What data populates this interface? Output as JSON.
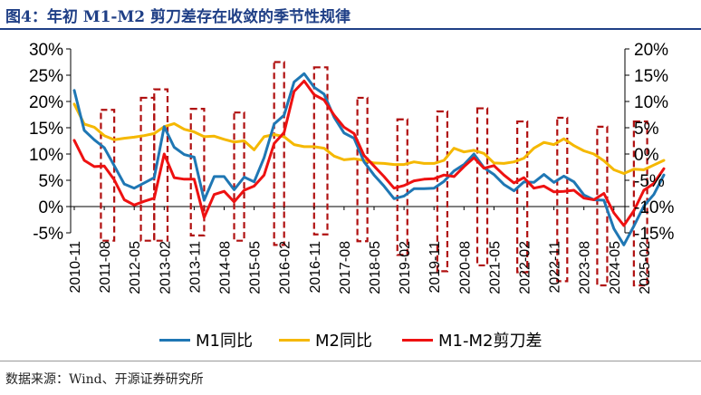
{
  "title": "图4：年初 M1-M2 剪刀差存在收敛的季节性规律",
  "source": "数据来源：Wind、开源证券研究所",
  "colors": {
    "m1": "#1f77b4",
    "m2": "#f5b800",
    "scissor": "#ee1111",
    "box": "#b01010",
    "title": "#1f3f86"
  },
  "chart_data": {
    "type": "line",
    "title": "图4：年初 M1-M2 剪刀差存在收敛的季节性规律",
    "left_axis": {
      "ticks": [
        "30%",
        "25%",
        "20%",
        "15%",
        "10%",
        "5%",
        "0%",
        "-5%"
      ],
      "range": [
        -5,
        30
      ]
    },
    "right_axis": {
      "ticks": [
        "20%",
        "15%",
        "10%",
        "5%",
        "0%",
        "-5%",
        "-10%",
        "-15%"
      ],
      "range": [
        -15,
        20
      ]
    },
    "x_tick_labels": [
      "2010-11",
      "2011-08",
      "2012-05",
      "2013-02",
      "2013-11",
      "2014-08",
      "2015-05",
      "2016-02",
      "2016-11",
      "2017-08",
      "2018-05",
      "2019-02",
      "2019-11",
      "2020-08",
      "2021-05",
      "2022-02",
      "2022-11",
      "2023-08",
      "2024-05",
      "2025-02"
    ],
    "legend": {
      "position": "bottom",
      "entries": [
        "M1同比",
        "M2同比",
        "M1-M2剪刀差"
      ]
    },
    "series": [
      {
        "name": "M1同比",
        "axis": "left",
        "x": [
          "2010-11",
          "2011-02",
          "2011-05",
          "2011-08",
          "2011-11",
          "2012-02",
          "2012-05",
          "2012-08",
          "2012-11",
          "2013-02",
          "2013-05",
          "2013-08",
          "2013-11",
          "2014-02",
          "2014-05",
          "2014-08",
          "2014-11",
          "2015-02",
          "2015-05",
          "2015-08",
          "2015-11",
          "2016-02",
          "2016-05",
          "2016-08",
          "2016-11",
          "2017-02",
          "2017-05",
          "2017-08",
          "2017-11",
          "2018-02",
          "2018-05",
          "2018-08",
          "2018-11",
          "2019-02",
          "2019-05",
          "2019-08",
          "2019-11",
          "2020-02",
          "2020-05",
          "2020-08",
          "2020-11",
          "2021-02",
          "2021-05",
          "2021-08",
          "2021-11",
          "2022-02",
          "2022-05",
          "2022-08",
          "2022-11",
          "2023-02",
          "2023-05",
          "2023-08",
          "2023-11",
          "2024-02",
          "2024-05",
          "2024-08",
          "2024-11",
          "2025-02",
          "2025-05",
          "2025-08"
        ],
        "values": [
          22.1,
          14.5,
          12.7,
          11.2,
          7.8,
          4.3,
          3.5,
          4.5,
          5.5,
          15.2,
          11.3,
          9.9,
          9.4,
          1.2,
          5.7,
          5.7,
          3.2,
          5.6,
          4.7,
          9.3,
          15.7,
          17.4,
          23.7,
          25.3,
          22.7,
          21.4,
          17.0,
          14.0,
          13.0,
          8.5,
          6.0,
          3.9,
          1.5,
          2.0,
          3.4,
          3.4,
          3.5,
          4.8,
          6.8,
          8.0,
          10.0,
          7.4,
          6.1,
          4.2,
          3.0,
          4.7,
          4.6,
          6.1,
          4.6,
          5.8,
          4.7,
          2.2,
          1.3,
          1.2,
          -4.2,
          -7.3,
          -3.7,
          0.1,
          2.3,
          6.0
        ]
      },
      {
        "name": "M2同比",
        "axis": "left",
        "x": [
          "2010-11",
          "2011-02",
          "2011-05",
          "2011-08",
          "2011-11",
          "2012-02",
          "2012-05",
          "2012-08",
          "2012-11",
          "2013-02",
          "2013-05",
          "2013-08",
          "2013-11",
          "2014-02",
          "2014-05",
          "2014-08",
          "2014-11",
          "2015-02",
          "2015-05",
          "2015-08",
          "2015-11",
          "2016-02",
          "2016-05",
          "2016-08",
          "2016-11",
          "2017-02",
          "2017-05",
          "2017-08",
          "2017-11",
          "2018-02",
          "2018-05",
          "2018-08",
          "2018-11",
          "2019-02",
          "2019-05",
          "2019-08",
          "2019-11",
          "2020-02",
          "2020-05",
          "2020-08",
          "2020-11",
          "2021-02",
          "2021-05",
          "2021-08",
          "2021-11",
          "2022-02",
          "2022-05",
          "2022-08",
          "2022-11",
          "2023-02",
          "2023-05",
          "2023-08",
          "2023-11",
          "2024-02",
          "2024-05",
          "2024-08",
          "2024-11",
          "2025-02",
          "2025-05",
          "2025-08"
        ],
        "values": [
          19.5,
          15.7,
          15.1,
          13.5,
          12.7,
          13.0,
          13.2,
          13.5,
          13.9,
          15.2,
          15.8,
          14.7,
          14.2,
          13.3,
          13.4,
          12.8,
          12.3,
          12.5,
          10.8,
          13.3,
          13.7,
          13.3,
          11.8,
          11.4,
          11.4,
          11.1,
          9.6,
          8.9,
          9.1,
          8.8,
          8.3,
          8.2,
          8.0,
          8.0,
          8.5,
          8.2,
          8.2,
          8.8,
          11.1,
          10.4,
          10.7,
          10.1,
          8.3,
          8.2,
          8.5,
          9.2,
          11.1,
          12.2,
          11.8,
          12.9,
          11.6,
          10.6,
          10.0,
          8.7,
          7.0,
          6.3,
          7.1,
          7.0,
          7.9,
          8.8
        ]
      },
      {
        "name": "M1-M2剪刀差",
        "axis": "right",
        "x": [
          "2010-11",
          "2011-02",
          "2011-05",
          "2011-08",
          "2011-11",
          "2012-02",
          "2012-05",
          "2012-08",
          "2012-11",
          "2013-02",
          "2013-05",
          "2013-08",
          "2013-11",
          "2014-02",
          "2014-05",
          "2014-08",
          "2014-11",
          "2015-02",
          "2015-05",
          "2015-08",
          "2015-11",
          "2016-02",
          "2016-05",
          "2016-08",
          "2016-11",
          "2017-02",
          "2017-05",
          "2017-08",
          "2017-11",
          "2018-02",
          "2018-05",
          "2018-08",
          "2018-11",
          "2019-02",
          "2019-05",
          "2019-08",
          "2019-11",
          "2020-02",
          "2020-05",
          "2020-08",
          "2020-11",
          "2021-02",
          "2021-05",
          "2021-08",
          "2021-11",
          "2022-02",
          "2022-05",
          "2022-08",
          "2022-11",
          "2023-02",
          "2023-05",
          "2023-08",
          "2023-11",
          "2024-02",
          "2024-05",
          "2024-08",
          "2024-11",
          "2025-02",
          "2025-05",
          "2025-08"
        ],
        "values": [
          2.6,
          -1.2,
          -2.4,
          -2.3,
          -4.9,
          -8.7,
          -9.7,
          -9.0,
          -8.4,
          0.0,
          -4.5,
          -4.8,
          -4.8,
          -12.1,
          -7.7,
          -7.1,
          -9.1,
          -6.9,
          -6.1,
          -4.0,
          2.0,
          4.1,
          11.9,
          13.9,
          11.3,
          10.3,
          7.4,
          5.1,
          3.9,
          -0.3,
          -2.3,
          -4.3,
          -6.5,
          -6.0,
          -5.1,
          -4.8,
          -4.7,
          -4.0,
          -4.3,
          -2.4,
          -0.7,
          -2.7,
          -2.2,
          -4.0,
          -5.5,
          -4.5,
          -6.5,
          -6.1,
          -7.2,
          -7.1,
          -6.9,
          -8.4,
          -8.7,
          -7.5,
          -11.2,
          -13.6,
          -10.8,
          -6.9,
          -5.6,
          -2.8
        ]
      }
    ]
  }
}
